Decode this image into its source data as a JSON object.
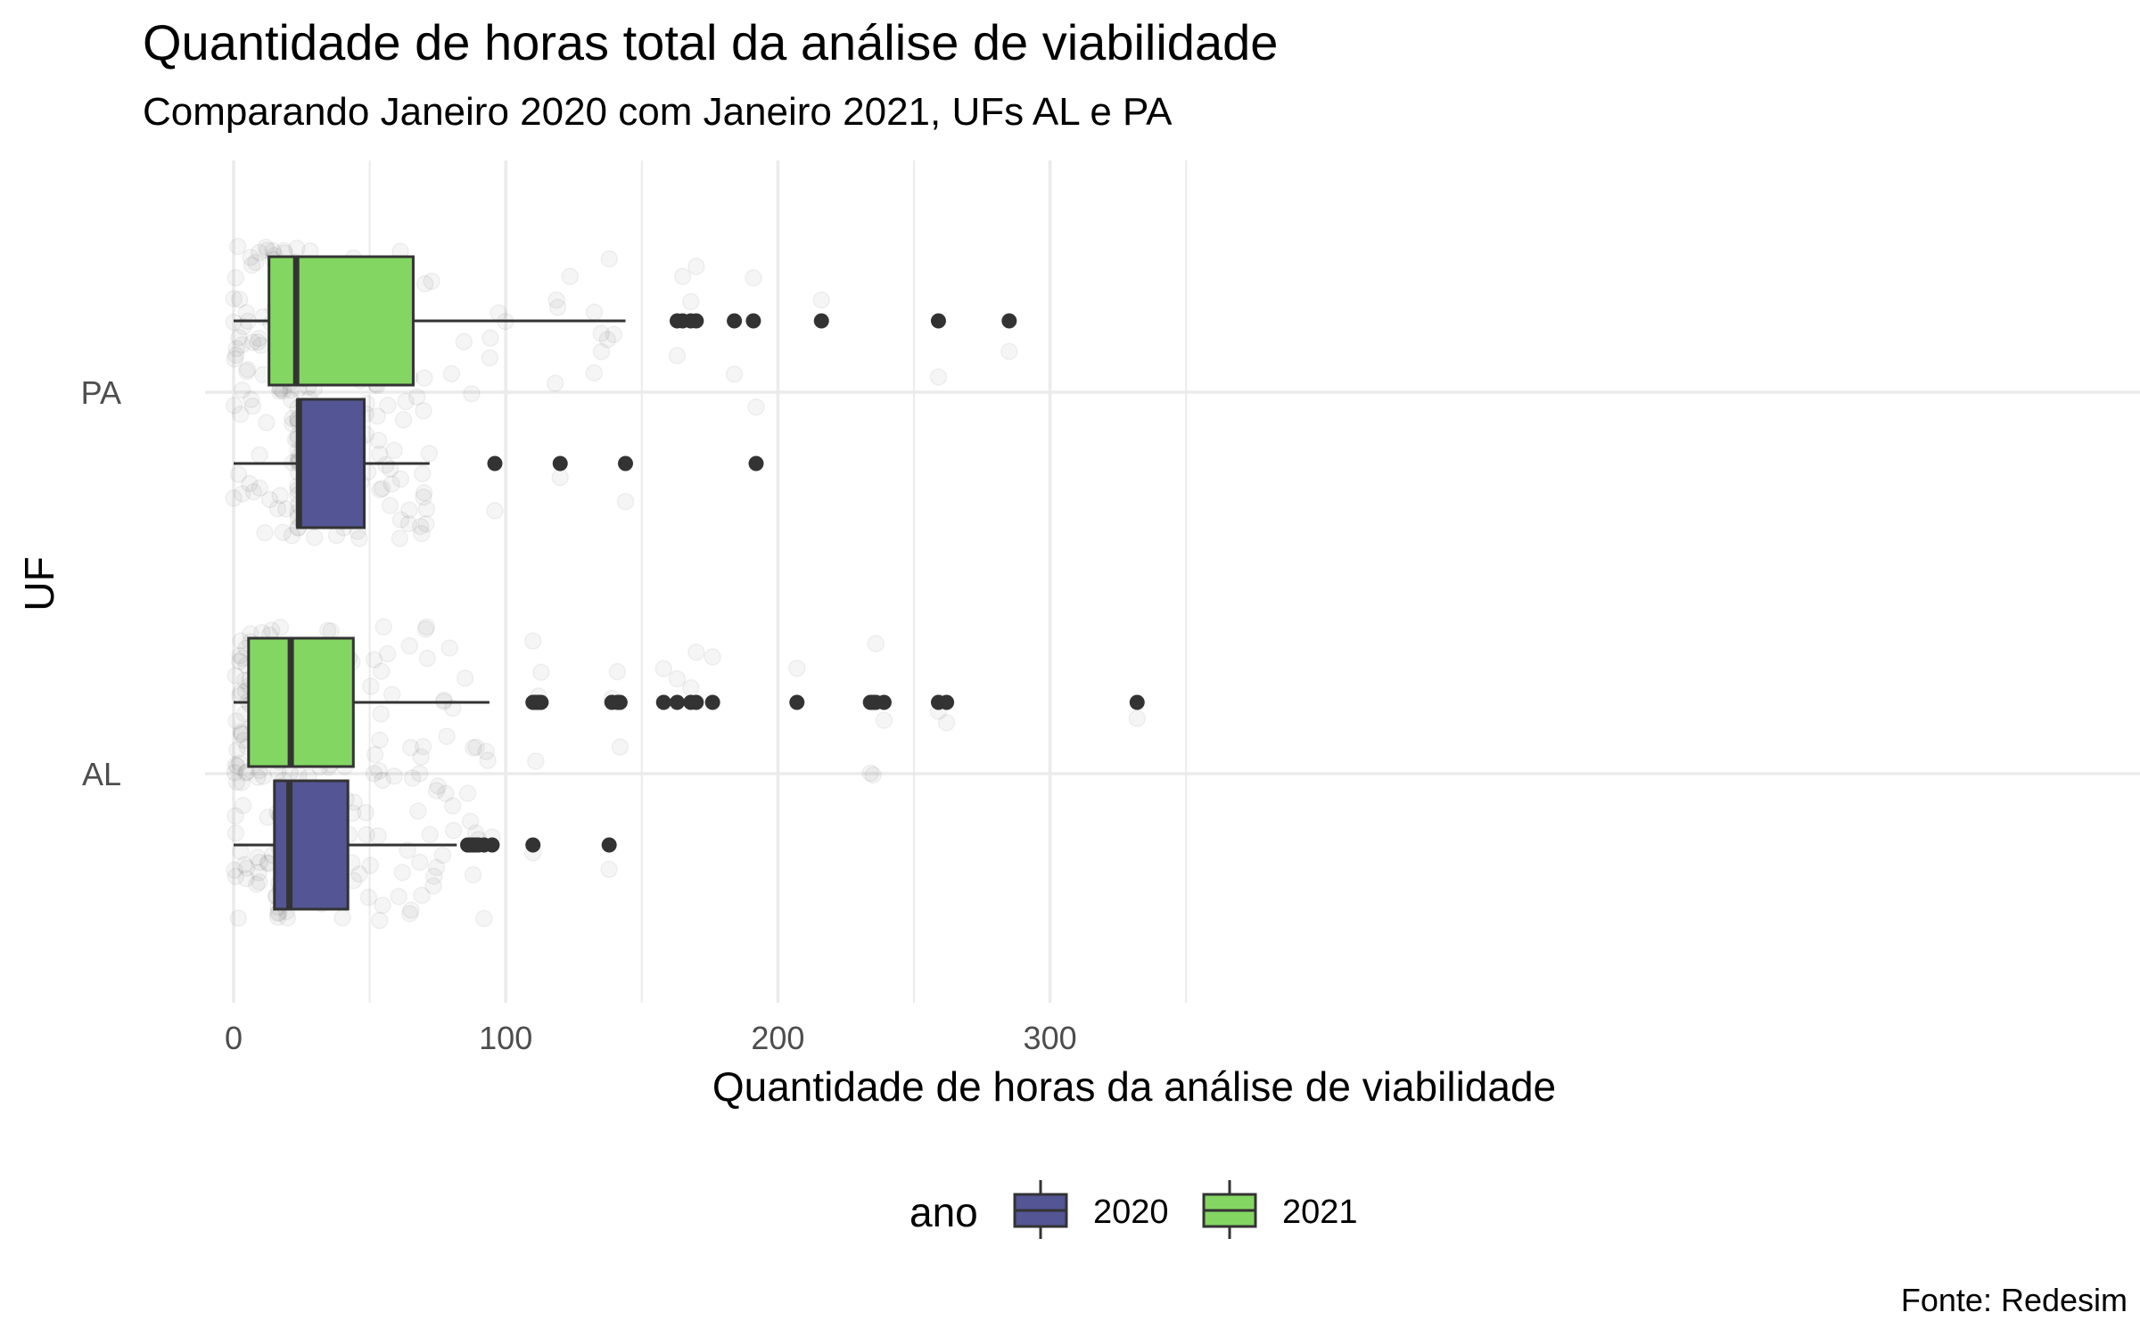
{
  "chart_data": {
    "type": "boxplot",
    "orientation": "horizontal",
    "title": "Quantidade de horas total da análise de viabilidade",
    "subtitle": "Comparando Janeiro 2020 com Janeiro 2021, UFs AL e PA",
    "xlabel": "Quantidade de horas da análise de viabilidade",
    "ylabel": "UF",
    "caption": "Fonte: Redesim",
    "xlim": [
      -2,
      350
    ],
    "x_ticks": [
      0,
      100,
      200,
      300
    ],
    "x_minor_ticks": [
      50,
      150,
      250,
      350
    ],
    "categories": [
      "PA",
      "AL"
    ],
    "grid": true,
    "legend": {
      "title": "ano",
      "position": "bottom",
      "entries": [
        {
          "label": "2020",
          "color": "#535594"
        },
        {
          "label": "2021",
          "color": "#84d662"
        }
      ]
    },
    "series": [
      {
        "name": "2020",
        "color": "#535594",
        "boxes": [
          {
            "category": "PA",
            "whisker_low": 0,
            "q1": 23.5,
            "median": 24,
            "q3": 48,
            "whisker_high": 72,
            "outliers": [
              96,
              120,
              144,
              192
            ]
          },
          {
            "category": "AL",
            "whisker_low": 0,
            "q1": 15,
            "median": 20.5,
            "q3": 42,
            "whisker_high": 82,
            "outliers": [
              86,
              87,
              88,
              89,
              90,
              92,
              95,
              110,
              138
            ]
          }
        ]
      },
      {
        "name": "2021",
        "color": "#84d662",
        "boxes": [
          {
            "category": "PA",
            "whisker_low": 0,
            "q1": 13,
            "median": 23,
            "q3": 66,
            "whisker_high": 144,
            "outliers": [
              163,
              165,
              168,
              170,
              184,
              191,
              216,
              259,
              285
            ]
          },
          {
            "category": "AL",
            "whisker_low": 0,
            "q1": 5.5,
            "median": 21,
            "q3": 44,
            "whisker_high": 94,
            "outliers": [
              110,
              111,
              112,
              113,
              139,
              141,
              142,
              158,
              163,
              168,
              170,
              176,
              207,
              234,
              235,
              236,
              239,
              259,
              262,
              332
            ]
          }
        ]
      }
    ]
  }
}
